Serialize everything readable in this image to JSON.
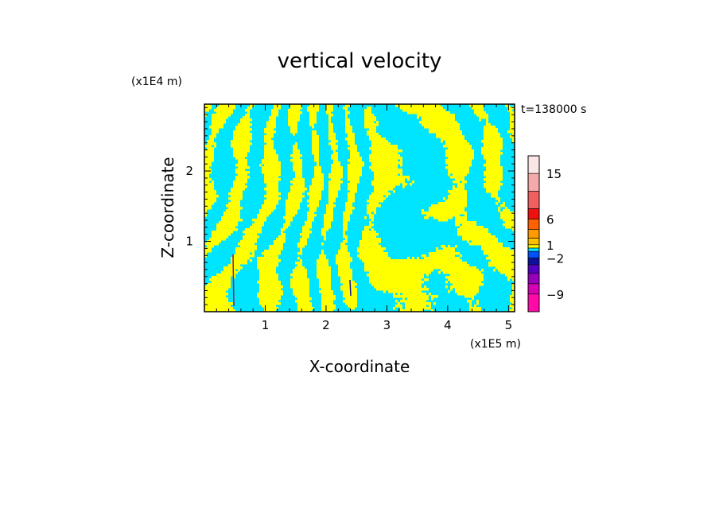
{
  "chart_data": {
    "type": "heatmap",
    "title": "vertical velocity",
    "time_label": "t=138000 s",
    "xlabel": "X-coordinate",
    "ylabel": "Z-coordinate",
    "x_scale_label": "(x1E5 m)",
    "y_scale_label": "(x1E4 m)",
    "xlim": [
      0,
      5.1
    ],
    "ylim": [
      0,
      2.95
    ],
    "x_ticks": [
      "1",
      "2",
      "3",
      "4",
      "5"
    ],
    "x_tick_values": [
      1,
      2,
      3,
      4,
      5
    ],
    "y_ticks": [
      "1",
      "2"
    ],
    "y_tick_values": [
      1,
      2
    ],
    "field_colors": {
      "positive": "#ffff00",
      "negative": "#00e5ff"
    },
    "colorbar": {
      "levels": [
        {
          "color": "#ff0aa8",
          "lo": -12,
          "hi": -9
        },
        {
          "color": "#d600b4",
          "lo": -9,
          "hi": -6
        },
        {
          "color": "#9900bb",
          "lo": -6,
          "hi": -4
        },
        {
          "color": "#5500c0",
          "lo": -4,
          "hi": -3
        },
        {
          "color": "#1010a0",
          "lo": -3,
          "hi": -2
        },
        {
          "color": "#0050ff",
          "lo": -2,
          "hi": -1
        },
        {
          "color": "#00e5ff",
          "lo": -1,
          "hi": 0
        },
        {
          "color": "#ffff00",
          "lo": 0,
          "hi": 1
        },
        {
          "color": "#ffc000",
          "lo": 1,
          "hi": 2
        },
        {
          "color": "#ff9a00",
          "lo": 2,
          "hi": 4
        },
        {
          "color": "#ff6000",
          "lo": 4,
          "hi": 6
        },
        {
          "color": "#f01010",
          "lo": 6,
          "hi": 9
        },
        {
          "color": "#f06060",
          "lo": 9,
          "hi": 12
        },
        {
          "color": "#f4aaaa",
          "lo": 12,
          "hi": 15
        },
        {
          "color": "#fbe6e6",
          "lo": 15,
          "hi": 20
        }
      ],
      "labels": [
        "15",
        "6",
        "1",
        "−2",
        "−9"
      ],
      "label_values": [
        15,
        6,
        1,
        -2,
        -9
      ]
    }
  }
}
